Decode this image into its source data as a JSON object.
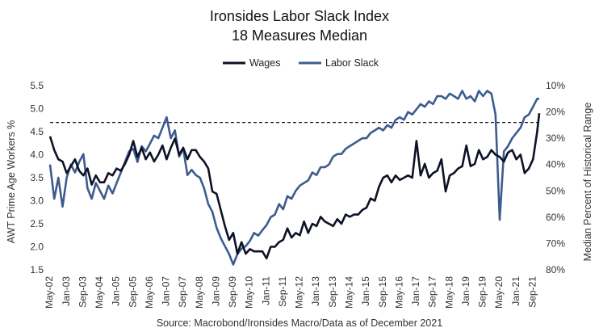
{
  "chart_data": {
    "type": "line",
    "title": "Ironsides Labor Slack Index",
    "subtitle": "18 Measures Median",
    "ylabel": "AWT Prime Age Workers %",
    "y2label": "Median Percent of Historical Range",
    "source": "Source: Macrobond/Ironsides Macro/Data as of December 2021",
    "ylim": [
      1.5,
      5.5
    ],
    "yticks": [
      "1.5",
      "2.0",
      "2.5",
      "3.0",
      "3.5",
      "4.0",
      "4.5",
      "5.0",
      "5.5"
    ],
    "y2lim": [
      80,
      10
    ],
    "y2ticks": [
      "10%",
      "20%",
      "30%",
      "40%",
      "50%",
      "60%",
      "70%",
      "80%"
    ],
    "y2_reversed": true,
    "xlim": [
      "2002-05",
      "2021-12"
    ],
    "xticks": [
      "May-02",
      "Jan-03",
      "Sep-03",
      "May-04",
      "Jan-05",
      "Sep-05",
      "May-06",
      "Jan-07",
      "Sep-07",
      "May-08",
      "Jan-09",
      "Sep-09",
      "May-10",
      "Jan-11",
      "Sep-11",
      "May-12",
      "Jan-13",
      "Sep-13",
      "May-14",
      "Jan-15",
      "Sep-15",
      "May-16",
      "Jan-17",
      "Sep-17",
      "May-18",
      "Jan-19",
      "Sep-19",
      "May-20",
      "Jan-21",
      "Sep-21"
    ],
    "reference_line": {
      "axis": "y",
      "value": 4.7,
      "style": "dashed",
      "color": "#1a1a2e"
    },
    "legend_position": "top-center",
    "grid": false,
    "series": [
      {
        "name": "Wages",
        "axis": "left",
        "color": "#0d1226",
        "points": [
          [
            "2002-05",
            4.4
          ],
          [
            "2002-07",
            4.1
          ],
          [
            "2002-09",
            3.9
          ],
          [
            "2002-11",
            3.85
          ],
          [
            "2003-01",
            3.6
          ],
          [
            "2003-03",
            3.75
          ],
          [
            "2003-05",
            3.9
          ],
          [
            "2003-07",
            3.65
          ],
          [
            "2003-09",
            3.55
          ],
          [
            "2003-11",
            3.7
          ],
          [
            "2004-01",
            3.35
          ],
          [
            "2004-03",
            3.55
          ],
          [
            "2004-05",
            3.4
          ],
          [
            "2004-07",
            3.4
          ],
          [
            "2004-09",
            3.6
          ],
          [
            "2004-11",
            3.55
          ],
          [
            "2005-01",
            3.7
          ],
          [
            "2005-03",
            3.65
          ],
          [
            "2005-05",
            3.8
          ],
          [
            "2005-07",
            4.0
          ],
          [
            "2005-09",
            4.3
          ],
          [
            "2005-11",
            3.95
          ],
          [
            "2006-01",
            4.15
          ],
          [
            "2006-03",
            3.9
          ],
          [
            "2006-05",
            4.05
          ],
          [
            "2006-07",
            3.85
          ],
          [
            "2006-09",
            4.0
          ],
          [
            "2006-11",
            4.2
          ],
          [
            "2007-01",
            3.9
          ],
          [
            "2007-03",
            4.15
          ],
          [
            "2007-05",
            4.35
          ],
          [
            "2007-07",
            4.0
          ],
          [
            "2007-09",
            4.15
          ],
          [
            "2007-11",
            3.9
          ],
          [
            "2008-01",
            4.1
          ],
          [
            "2008-03",
            4.1
          ],
          [
            "2008-05",
            3.95
          ],
          [
            "2008-07",
            3.85
          ],
          [
            "2008-09",
            3.7
          ],
          [
            "2008-11",
            3.2
          ],
          [
            "2009-01",
            3.15
          ],
          [
            "2009-03",
            2.8
          ],
          [
            "2009-05",
            2.45
          ],
          [
            "2009-07",
            2.15
          ],
          [
            "2009-09",
            2.3
          ],
          [
            "2009-11",
            1.85
          ],
          [
            "2010-01",
            2.1
          ],
          [
            "2010-03",
            1.85
          ],
          [
            "2010-05",
            1.95
          ],
          [
            "2010-07",
            1.9
          ],
          [
            "2010-09",
            1.9
          ],
          [
            "2010-11",
            1.9
          ],
          [
            "2011-01",
            1.75
          ],
          [
            "2011-03",
            2.0
          ],
          [
            "2011-05",
            2.0
          ],
          [
            "2011-07",
            2.1
          ],
          [
            "2011-09",
            2.15
          ],
          [
            "2011-11",
            2.4
          ],
          [
            "2012-01",
            2.2
          ],
          [
            "2012-03",
            2.3
          ],
          [
            "2012-05",
            2.25
          ],
          [
            "2012-07",
            2.55
          ],
          [
            "2012-09",
            2.3
          ],
          [
            "2012-11",
            2.5
          ],
          [
            "2013-01",
            2.45
          ],
          [
            "2013-03",
            2.65
          ],
          [
            "2013-05",
            2.55
          ],
          [
            "2013-07",
            2.5
          ],
          [
            "2013-09",
            2.45
          ],
          [
            "2013-11",
            2.6
          ],
          [
            "2014-01",
            2.5
          ],
          [
            "2014-03",
            2.7
          ],
          [
            "2014-05",
            2.65
          ],
          [
            "2014-07",
            2.7
          ],
          [
            "2014-09",
            2.7
          ],
          [
            "2014-11",
            2.8
          ],
          [
            "2015-01",
            2.85
          ],
          [
            "2015-03",
            3.05
          ],
          [
            "2015-05",
            3.0
          ],
          [
            "2015-07",
            3.3
          ],
          [
            "2015-09",
            3.5
          ],
          [
            "2015-11",
            3.55
          ],
          [
            "2016-01",
            3.4
          ],
          [
            "2016-03",
            3.55
          ],
          [
            "2016-05",
            3.45
          ],
          [
            "2016-07",
            3.5
          ],
          [
            "2016-09",
            3.55
          ],
          [
            "2016-11",
            3.5
          ],
          [
            "2017-01",
            4.3
          ],
          [
            "2017-03",
            3.55
          ],
          [
            "2017-05",
            3.8
          ],
          [
            "2017-07",
            3.5
          ],
          [
            "2017-09",
            3.6
          ],
          [
            "2017-11",
            3.65
          ],
          [
            "2018-01",
            3.9
          ],
          [
            "2018-03",
            3.2
          ],
          [
            "2018-05",
            3.55
          ],
          [
            "2018-07",
            3.6
          ],
          [
            "2018-09",
            3.7
          ],
          [
            "2018-11",
            3.75
          ],
          [
            "2019-01",
            4.2
          ],
          [
            "2019-03",
            3.75
          ],
          [
            "2019-05",
            3.8
          ],
          [
            "2019-07",
            4.1
          ],
          [
            "2019-09",
            3.9
          ],
          [
            "2019-11",
            3.95
          ],
          [
            "2020-01",
            4.1
          ],
          [
            "2020-03",
            4.0
          ],
          [
            "2020-05",
            3.95
          ],
          [
            "2020-07",
            3.85
          ],
          [
            "2020-09",
            4.05
          ],
          [
            "2020-11",
            4.1
          ],
          [
            "2021-01",
            3.9
          ],
          [
            "2021-03",
            4.0
          ],
          [
            "2021-05",
            3.6
          ],
          [
            "2021-07",
            3.7
          ],
          [
            "2021-09",
            3.9
          ],
          [
            "2021-11",
            4.5
          ],
          [
            "2021-12",
            4.9
          ]
        ]
      },
      {
        "name": "Labor Slack",
        "axis": "right",
        "color": "#3e5b8f",
        "points": [
          [
            "2002-05",
            40
          ],
          [
            "2002-07",
            53
          ],
          [
            "2002-09",
            45
          ],
          [
            "2002-11",
            56
          ],
          [
            "2003-01",
            45
          ],
          [
            "2003-03",
            40
          ],
          [
            "2003-05",
            43
          ],
          [
            "2003-07",
            39
          ],
          [
            "2003-09",
            36
          ],
          [
            "2003-11",
            49
          ],
          [
            "2004-01",
            53
          ],
          [
            "2004-03",
            47
          ],
          [
            "2004-05",
            50
          ],
          [
            "2004-07",
            53
          ],
          [
            "2004-09",
            48
          ],
          [
            "2004-11",
            51
          ],
          [
            "2005-01",
            47
          ],
          [
            "2005-03",
            43
          ],
          [
            "2005-05",
            39
          ],
          [
            "2005-07",
            35
          ],
          [
            "2005-09",
            34
          ],
          [
            "2005-11",
            39
          ],
          [
            "2006-01",
            33
          ],
          [
            "2006-03",
            35
          ],
          [
            "2006-05",
            32
          ],
          [
            "2006-07",
            29
          ],
          [
            "2006-09",
            30
          ],
          [
            "2006-11",
            26
          ],
          [
            "2007-01",
            22
          ],
          [
            "2007-03",
            30
          ],
          [
            "2007-05",
            27
          ],
          [
            "2007-07",
            37
          ],
          [
            "2007-09",
            34
          ],
          [
            "2007-11",
            44
          ],
          [
            "2008-01",
            42
          ],
          [
            "2008-03",
            44
          ],
          [
            "2008-05",
            45
          ],
          [
            "2008-07",
            49
          ],
          [
            "2008-09",
            55
          ],
          [
            "2008-11",
            58
          ],
          [
            "2009-01",
            64
          ],
          [
            "2009-03",
            68
          ],
          [
            "2009-05",
            71
          ],
          [
            "2009-07",
            74
          ],
          [
            "2009-09",
            78
          ],
          [
            "2009-11",
            74
          ],
          [
            "2010-01",
            72
          ],
          [
            "2010-03",
            71
          ],
          [
            "2010-05",
            69
          ],
          [
            "2010-07",
            66
          ],
          [
            "2010-09",
            67
          ],
          [
            "2010-11",
            65
          ],
          [
            "2011-01",
            63
          ],
          [
            "2011-03",
            60
          ],
          [
            "2011-05",
            59
          ],
          [
            "2011-07",
            55
          ],
          [
            "2011-09",
            57
          ],
          [
            "2011-11",
            52
          ],
          [
            "2012-01",
            53
          ],
          [
            "2012-03",
            50
          ],
          [
            "2012-05",
            48
          ],
          [
            "2012-07",
            47
          ],
          [
            "2012-09",
            46
          ],
          [
            "2012-11",
            43
          ],
          [
            "2013-01",
            44
          ],
          [
            "2013-03",
            41
          ],
          [
            "2013-05",
            41
          ],
          [
            "2013-07",
            40
          ],
          [
            "2013-09",
            37
          ],
          [
            "2013-11",
            36
          ],
          [
            "2014-01",
            36
          ],
          [
            "2014-03",
            34
          ],
          [
            "2014-05",
            33
          ],
          [
            "2014-07",
            32
          ],
          [
            "2014-09",
            31
          ],
          [
            "2014-11",
            30
          ],
          [
            "2015-01",
            30
          ],
          [
            "2015-03",
            28
          ],
          [
            "2015-05",
            27
          ],
          [
            "2015-07",
            26
          ],
          [
            "2015-09",
            27
          ],
          [
            "2015-11",
            25
          ],
          [
            "2016-01",
            26
          ],
          [
            "2016-03",
            23
          ],
          [
            "2016-05",
            22
          ],
          [
            "2016-07",
            23
          ],
          [
            "2016-09",
            20
          ],
          [
            "2016-11",
            21
          ],
          [
            "2017-01",
            19
          ],
          [
            "2017-03",
            17
          ],
          [
            "2017-05",
            18
          ],
          [
            "2017-07",
            16
          ],
          [
            "2017-09",
            17
          ],
          [
            "2017-11",
            14
          ],
          [
            "2018-01",
            14
          ],
          [
            "2018-03",
            15
          ],
          [
            "2018-05",
            13
          ],
          [
            "2018-07",
            14
          ],
          [
            "2018-09",
            15
          ],
          [
            "2018-11",
            12
          ],
          [
            "2019-01",
            15
          ],
          [
            "2019-03",
            14
          ],
          [
            "2019-05",
            16
          ],
          [
            "2019-07",
            12
          ],
          [
            "2019-09",
            14
          ],
          [
            "2019-11",
            12
          ],
          [
            "2020-01",
            13
          ],
          [
            "2020-03",
            21
          ],
          [
            "2020-05",
            61
          ],
          [
            "2020-07",
            35
          ],
          [
            "2020-09",
            33
          ],
          [
            "2020-11",
            30
          ],
          [
            "2021-01",
            28
          ],
          [
            "2021-03",
            26
          ],
          [
            "2021-05",
            22
          ],
          [
            "2021-07",
            21
          ],
          [
            "2021-09",
            18
          ],
          [
            "2021-11",
            15
          ],
          [
            "2021-12",
            15
          ]
        ]
      }
    ]
  }
}
